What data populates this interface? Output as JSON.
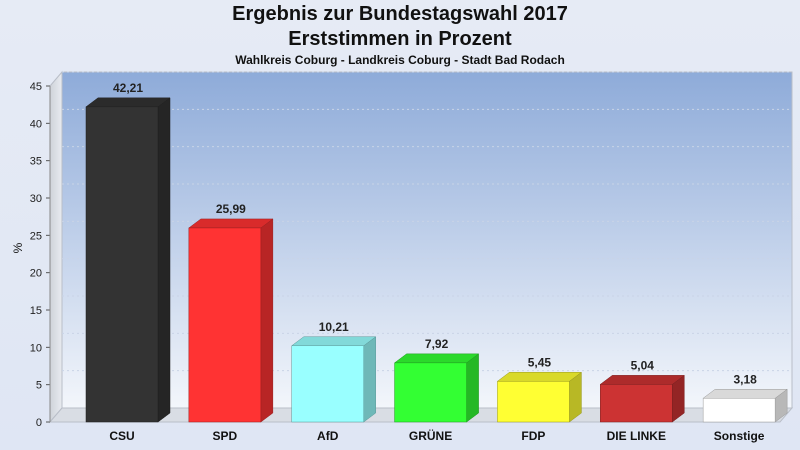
{
  "chart_data": {
    "type": "bar",
    "title": "Ergebnis zur Bundestagswahl 2017",
    "subtitle": "Erststimmen in Prozent",
    "caption": "Wahlkreis Coburg - Landkreis Coburg - Stadt Bad Rodach",
    "ylabel": "%",
    "xlabel": "",
    "ylim": [
      0,
      45
    ],
    "yticks": [
      0,
      5,
      10,
      15,
      20,
      25,
      30,
      35,
      40,
      45
    ],
    "categories": [
      "CSU",
      "SPD",
      "AfD",
      "GRÜNE",
      "FDP",
      "DIE LINKE",
      "Sonstige"
    ],
    "values": [
      42.21,
      25.99,
      10.21,
      7.92,
      5.45,
      5.04,
      3.18
    ],
    "value_labels": [
      "42,21",
      "25,99",
      "10,21",
      "7,92",
      "5,45",
      "5,04",
      "3,18"
    ],
    "colors": [
      "#333333",
      "#ff3333",
      "#99ffff",
      "#33ff33",
      "#ffff33",
      "#cc3333",
      "#ffffff"
    ],
    "grid": true
  }
}
